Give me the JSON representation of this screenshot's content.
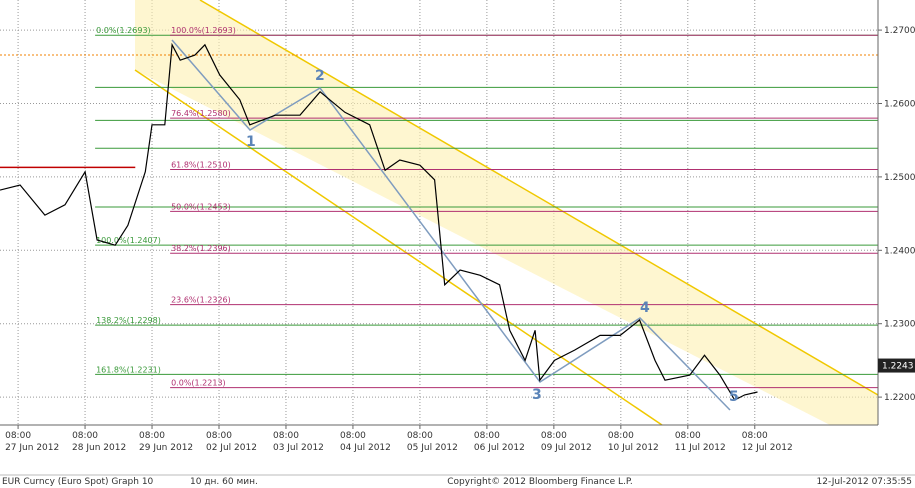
{
  "chart_data": {
    "type": "line",
    "x": [
      -0.27,
      0.03,
      0.4,
      0.7,
      1.0,
      1.18,
      1.45,
      1.64,
      1.9,
      2.0,
      2.19,
      2.3,
      2.42,
      2.64,
      2.79,
      3.01,
      3.31,
      3.46,
      3.84,
      4.21,
      4.51,
      4.88,
      5.25,
      5.48,
      5.7,
      6.0,
      6.22,
      6.37,
      6.6,
      6.9,
      7.19,
      7.34,
      7.57,
      7.72,
      7.79,
      8.01,
      8.31,
      8.69,
      8.99,
      9.28,
      9.51,
      9.66,
      10.03,
      10.25,
      10.48,
      10.7,
      10.85,
      11.04
    ],
    "series": [
      {
        "color": "#000000",
        "values": [
          1.2482,
          1.2489,
          1.2448,
          1.2462,
          1.2507,
          1.2414,
          1.2407,
          1.2434,
          1.2507,
          1.2571,
          1.2571,
          1.268,
          1.2659,
          1.2666,
          1.268,
          1.2639,
          1.2605,
          1.2571,
          1.2584,
          1.2584,
          1.2616,
          1.2588,
          1.2571,
          1.2509,
          1.2523,
          1.2516,
          1.2496,
          1.2353,
          1.2373,
          1.2366,
          1.2353,
          1.2291,
          1.225,
          1.2291,
          1.2223,
          1.225,
          1.2264,
          1.2284,
          1.2284,
          1.2305,
          1.225,
          1.2223,
          1.223,
          1.2257,
          1.223,
          1.2196,
          1.2203,
          1.2207
        ]
      }
    ],
    "xlim": [
      -0.27,
      12.84
    ],
    "ylim": [
      1.2162,
      1.2741
    ],
    "yticks": [
      {
        "value": 1.22,
        "label": "1.2200"
      },
      {
        "value": 1.23,
        "label": "1.2300"
      },
      {
        "value": 1.24,
        "label": "1.2400"
      },
      {
        "value": 1.25,
        "label": "1.2500"
      },
      {
        "value": 1.26,
        "label": "1.2600"
      },
      {
        "value": 1.27,
        "label": "1.2700"
      }
    ],
    "xticks": [
      {
        "value": 0,
        "label": "08:00",
        "date": "27 Jun 2012"
      },
      {
        "value": 1,
        "label": "08:00",
        "date": "28 Jun 2012"
      },
      {
        "value": 2,
        "label": "08:00",
        "date": "29 Jun 2012"
      },
      {
        "value": 3,
        "label": "08:00",
        "date": "02 Jul 2012"
      },
      {
        "value": 4,
        "label": "08:00",
        "date": "03 Jul 2012"
      },
      {
        "value": 5,
        "label": "08:00",
        "date": "04 Jul 2012"
      },
      {
        "value": 6,
        "label": "08:00",
        "date": "05 Jul 2012"
      },
      {
        "value": 7,
        "label": "08:00",
        "date": "06 Jul 2012"
      },
      {
        "value": 8,
        "label": "08:00",
        "date": "09 Jul 2012"
      },
      {
        "value": 9,
        "label": "08:00",
        "date": "10 Jul 2012"
      },
      {
        "value": 10,
        "label": "08:00",
        "date": "11 Jul 2012"
      },
      {
        "value": 11,
        "label": "08:00",
        "date": "12 Jul 2012"
      }
    ],
    "fib_retracement": {
      "color": "#b03070",
      "levels": [
        {
          "label": "100.0%(1.2693)",
          "value": 1.2693
        },
        {
          "label": "76.4%(1.2580)",
          "value": 1.258
        },
        {
          "label": "61.8%(1.2510)",
          "value": 1.251
        },
        {
          "label": "50.0%(1.2453)",
          "value": 1.2453
        },
        {
          "label": "38.2%(1.2396)",
          "value": 1.2396
        },
        {
          "label": "23.6%(1.2326)",
          "value": 1.2326
        },
        {
          "label": "0.0%(1.2213)",
          "value": 1.2213
        }
      ]
    },
    "fib_extension": {
      "color": "#3a9a3a",
      "levels": [
        {
          "label": "0.0%(1.2693)",
          "value": 1.2693
        },
        {
          "label": "100.0%(1.2407)",
          "value": 1.2407
        },
        {
          "label": "138.2%(1.2298)",
          "value": 1.2298
        },
        {
          "label": "161.8%(1.2231)",
          "value": 1.2231
        }
      ],
      "guide_lines": [
        1.2622,
        1.2577,
        1.2539,
        1.2459
      ]
    },
    "reference_lines": [
      {
        "value": 1.2666,
        "color": "#f08000"
      },
      {
        "value": 1.2513,
        "color": "#c00000"
      }
    ],
    "last_price": 1.2243,
    "wave_labels": [
      "1",
      "2",
      "3",
      "4",
      "5"
    ],
    "footer": {
      "instrument": "EUR Curncy (Euro Spot) Graph 10",
      "period": "10 дн. 60 мин.",
      "copyright": "Copyright© 2012 Bloomberg Finance L.P.",
      "timestamp": "12-Jul-2012 07:35:55"
    }
  }
}
